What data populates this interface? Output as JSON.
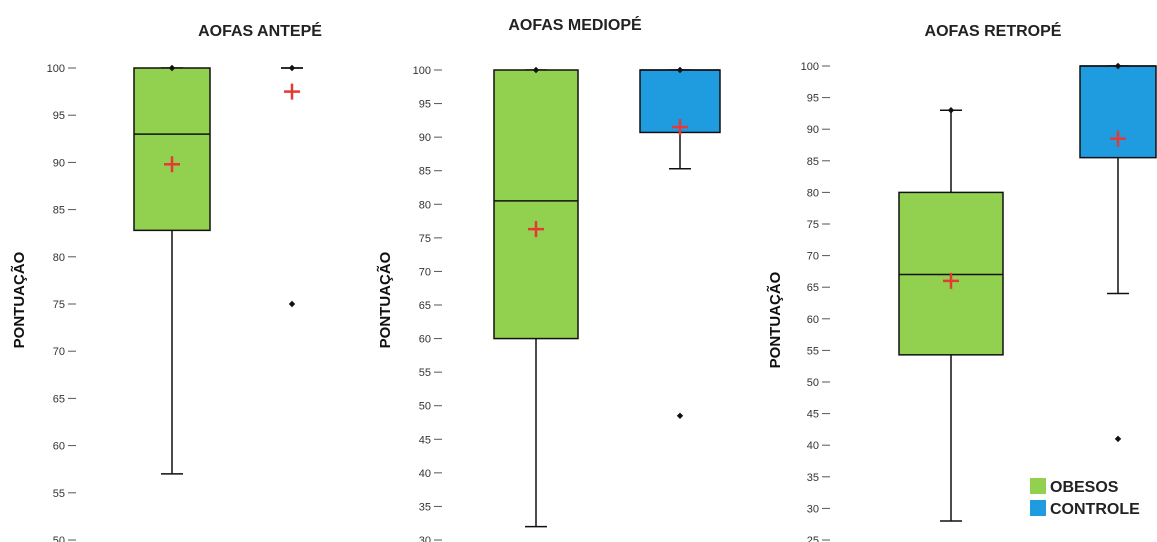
{
  "chart_data": [
    {
      "type": "boxplot",
      "title": "AOFAS ANTEPÉ",
      "ylabel": "PONTUAÇÃO",
      "ylim": [
        50,
        100
      ],
      "yticks": [
        50,
        55,
        60,
        65,
        70,
        75,
        80,
        85,
        90,
        95,
        100
      ],
      "series": [
        {
          "name": "OBESOS",
          "color": "#92d050",
          "whisker_low": 57,
          "q1": 82.8,
          "median": 93,
          "q3": 100,
          "whisker_high": 100,
          "mean": 89.8,
          "outliers": []
        },
        {
          "name": "CONTROLE",
          "color": "#1f9be0",
          "whisker_low": 100,
          "q1": 100,
          "median": 100,
          "q3": 100,
          "whisker_high": 100,
          "mean": 97.5,
          "outliers": [
            75
          ]
        }
      ]
    },
    {
      "type": "boxplot",
      "title": "AOFAS MEDIOPÉ",
      "ylabel": "PONTUAÇÃO",
      "ylim": [
        30,
        100
      ],
      "yticks": [
        30,
        35,
        40,
        45,
        50,
        55,
        60,
        65,
        70,
        75,
        80,
        85,
        90,
        95,
        100
      ],
      "series": [
        {
          "name": "OBESOS",
          "color": "#92d050",
          "whisker_low": 32,
          "q1": 60,
          "median": 80.5,
          "q3": 100,
          "whisker_high": 100,
          "mean": 76.3,
          "outliers": []
        },
        {
          "name": "CONTROLE",
          "color": "#1f9be0",
          "whisker_low": 85.3,
          "q1": 90.7,
          "median": 100,
          "q3": 100,
          "whisker_high": 100,
          "mean": 91.5,
          "outliers": [
            48.5
          ]
        }
      ]
    },
    {
      "type": "boxplot",
      "title": "AOFAS RETROPÉ",
      "ylabel": "PONTUAÇÃO",
      "ylim": [
        25,
        100
      ],
      "yticks": [
        25,
        30,
        35,
        40,
        45,
        50,
        55,
        60,
        65,
        70,
        75,
        80,
        85,
        90,
        95,
        100
      ],
      "series": [
        {
          "name": "OBESOS",
          "color": "#92d050",
          "whisker_low": 28,
          "q1": 54.3,
          "median": 67,
          "q3": 80,
          "whisker_high": 93,
          "mean": 66,
          "outliers": []
        },
        {
          "name": "CONTROLE",
          "color": "#1f9be0",
          "whisker_low": 64,
          "q1": 85.5,
          "median": 100,
          "q3": 100,
          "whisker_high": 100,
          "mean": 88.5,
          "outliers": [
            41
          ]
        }
      ]
    }
  ],
  "legend": {
    "placement": "bottom-right",
    "items": [
      {
        "label": "OBESOS",
        "color": "#92d050"
      },
      {
        "label": "CONTROLE",
        "color": "#1f9be0"
      }
    ]
  },
  "colors": {
    "mean_marker": "#e53935",
    "stroke": "#111111"
  }
}
